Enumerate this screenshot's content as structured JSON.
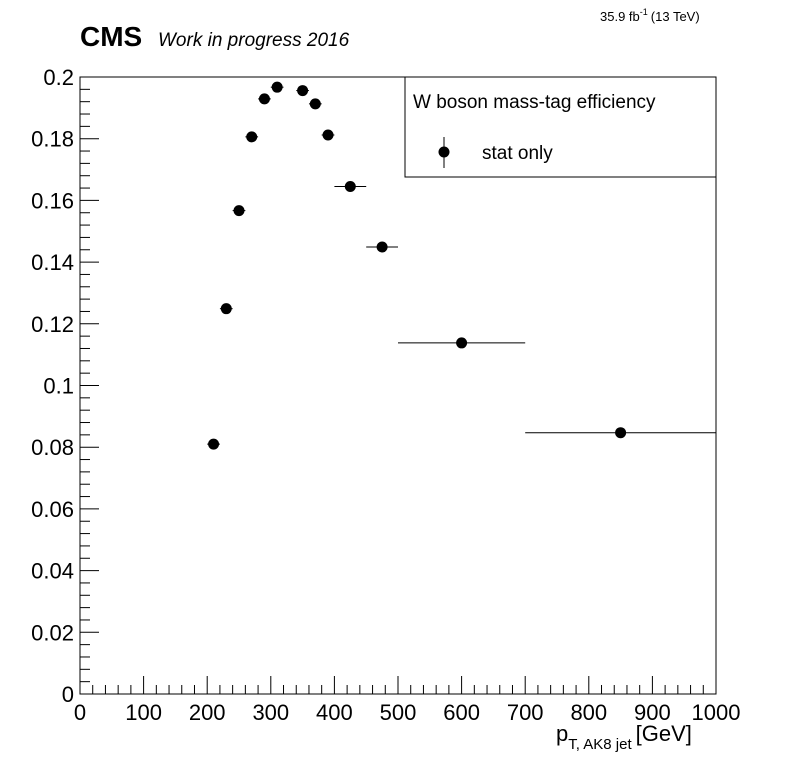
{
  "header": {
    "experiment": "CMS",
    "status": "Work in progress 2016",
    "lumi_value": "35.9 fb",
    "lumi_exponent": "-1",
    "energy": "(13 TeV)"
  },
  "legend": {
    "title": "W boson mass-tag efficiency",
    "entry": "stat only",
    "position": "top-right"
  },
  "axis": {
    "x_main": "p",
    "x_sub": "T, AK8 jet",
    "x_unit": "[GeV]"
  },
  "chart_data": {
    "type": "scatter",
    "title": "",
    "xlabel": "p_T, AK8 jet [GeV]",
    "ylabel": "",
    "xlim": [
      0,
      1000
    ],
    "ylim": [
      0,
      0.2
    ],
    "x_ticks": [
      "0",
      "100",
      "200",
      "300",
      "400",
      "500",
      "600",
      "700",
      "800",
      "900",
      "1000"
    ],
    "y_ticks": [
      "0",
      "0.02",
      "0.04",
      "0.06",
      "0.08",
      "0.1",
      "0.12",
      "0.14",
      "0.16",
      "0.18",
      "0.2"
    ],
    "x_tick_values": [
      0,
      100,
      200,
      300,
      400,
      500,
      600,
      700,
      800,
      900,
      1000
    ],
    "y_tick_values": [
      0,
      0.02,
      0.04,
      0.06,
      0.08,
      0.1,
      0.12,
      0.14,
      0.16,
      0.18,
      0.2
    ],
    "grid": false,
    "series": [
      {
        "name": "stat only",
        "x": [
          210,
          230,
          250,
          270,
          290,
          310,
          350,
          370,
          390,
          425,
          475,
          600,
          850
        ],
        "x_low": [
          200,
          220,
          240,
          260,
          280,
          300,
          340,
          360,
          380,
          400,
          450,
          500,
          700
        ],
        "x_high": [
          220,
          240,
          260,
          280,
          300,
          320,
          360,
          380,
          400,
          450,
          500,
          700,
          1000
        ],
        "y": [
          0.081,
          0.1249,
          0.1567,
          0.1806,
          0.1929,
          0.1967,
          0.1956,
          0.1913,
          0.1812,
          0.1645,
          0.1449,
          0.1138,
          0.0847
        ],
        "y_err": [
          0.001,
          0.0012,
          0.0011,
          0.0012,
          0.0012,
          0.0012,
          0.0012,
          0.0012,
          0.0013,
          0.001,
          0.0012,
          0.001,
          0.0014
        ]
      }
    ]
  }
}
